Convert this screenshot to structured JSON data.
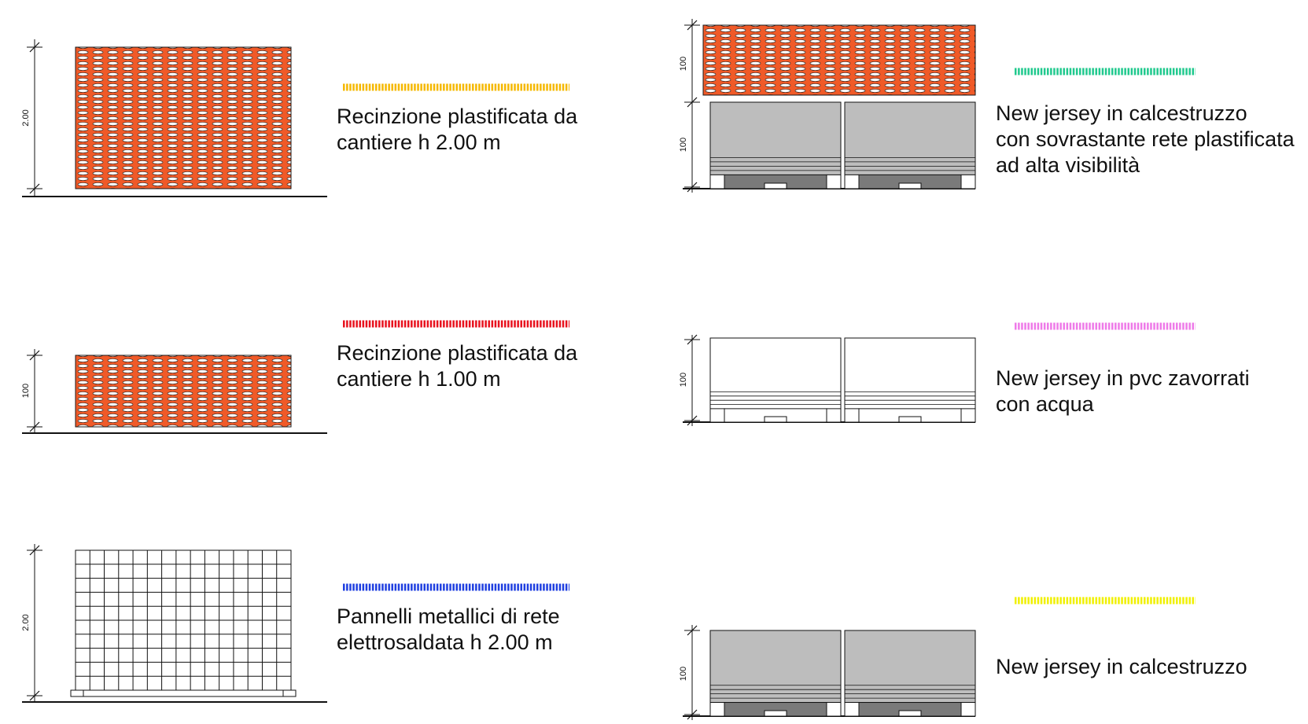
{
  "legend": [
    {
      "id": "fence2",
      "color": "#f5b800",
      "lines": [
        "Recinzione plastificata da",
        "cantiere h 2.00 m"
      ],
      "dim_labels": [
        "2.00"
      ]
    },
    {
      "id": "fence1",
      "color": "#e8121e",
      "lines": [
        "Recinzione plastificata da",
        "cantiere h 1.00 m"
      ],
      "dim_labels": [
        "100"
      ]
    },
    {
      "id": "mesh",
      "color": "#1f3fe0",
      "lines": [
        "Pannelli metallici di rete",
        "elettrosaldata h 2.00 m"
      ],
      "dim_labels": [
        "2.00"
      ]
    },
    {
      "id": "jerseyNet",
      "color": "#21c98e",
      "lines": [
        "New jersey in calcestruzzo",
        "con sovrastante rete plastificata",
        "ad alta visibilità"
      ],
      "dim_labels": [
        "100",
        "100"
      ]
    },
    {
      "id": "jerseyPvc",
      "color": "#ee7ae8",
      "lines": [
        "New jersey in pvc zavorrati",
        "con acqua"
      ],
      "dim_labels": [
        "100"
      ]
    },
    {
      "id": "jerseyCon",
      "color": "#f0f000",
      "lines": [
        "New jersey in calcestruzzo"
      ],
      "dim_labels": [
        "100"
      ]
    }
  ],
  "colors": {
    "orange_net": "#f05a28",
    "concrete": "#bdbdbd",
    "concrete_base": "#7a7a7a",
    "line": "#111111"
  }
}
